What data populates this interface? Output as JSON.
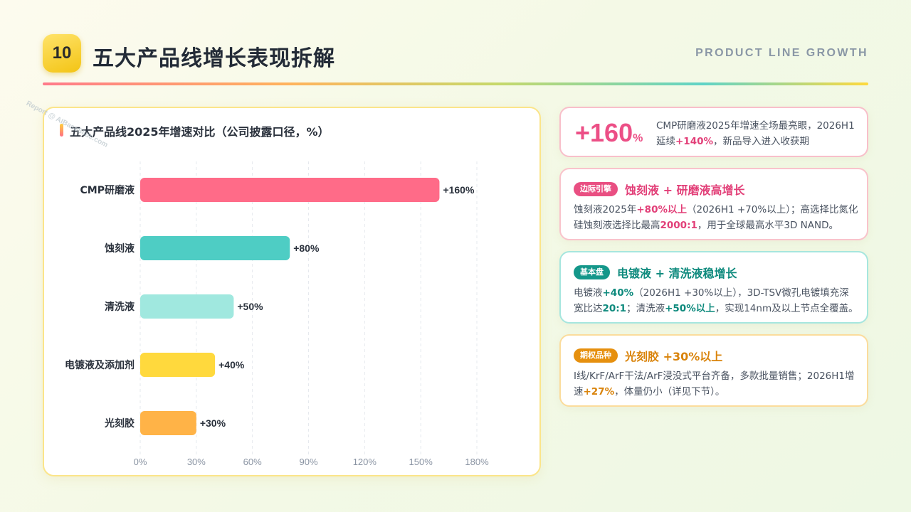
{
  "header": {
    "number": "10",
    "title": "五大产品线增长表现拆解",
    "subtitle_en": "PRODUCT LINE GROWTH"
  },
  "watermark": "Report @ AIBaseSlide.com",
  "chart_data": {
    "type": "bar",
    "orientation": "horizontal",
    "title": "五大产品线2025年增速对比（公司披露口径，%）",
    "categories": [
      "CMP研磨液",
      "蚀刻液",
      "清洗液",
      "电镀液及添加剂",
      "光刻胶"
    ],
    "values": [
      160,
      80,
      50,
      40,
      30
    ],
    "value_labels": [
      "+160%",
      "+80%",
      "+50%",
      "+40%",
      "+30%"
    ],
    "colors": [
      "#ff6b88",
      "#4ecdc4",
      "#a0e8df",
      "#ffd93d",
      "#ffb347"
    ],
    "xlim": [
      0,
      180
    ],
    "xticks": [
      0,
      30,
      60,
      90,
      120,
      150,
      180
    ],
    "xtick_labels": [
      "0%",
      "30%",
      "60%",
      "90%",
      "120%",
      "150%",
      "180%"
    ],
    "grid": "vertical-dashed",
    "xlabel": "",
    "ylabel": ""
  },
  "cards": [
    {
      "stat_value": "+160",
      "stat_unit": "%",
      "text": [
        {
          "t": "CMP研磨液2025年增速全场最亮眼，2026H1延续"
        },
        {
          "t": "+140%",
          "hl": true
        },
        {
          "t": "，新品导入进入收获期"
        }
      ]
    },
    {
      "tag": "边际引擎",
      "title": "蚀刻液 + 研磨液高增长",
      "text": [
        {
          "t": "蚀刻液2025年"
        },
        {
          "t": "+80%以上",
          "hl": true
        },
        {
          "t": "（2026H1 +70%以上）；高选择比氮化硅蚀刻液选择比最高"
        },
        {
          "t": "2000:1",
          "hl": true
        },
        {
          "t": "，用于全球最高水平3D NAND。"
        }
      ]
    },
    {
      "tag": "基本盘",
      "title": "电镀液 + 清洗液稳增长",
      "text": [
        {
          "t": "电镀液"
        },
        {
          "t": "+40%",
          "hl": true
        },
        {
          "t": "（2026H1 +30%以上），3D-TSV微孔电镀填充深宽比达"
        },
        {
          "t": "20:1",
          "hl": true
        },
        {
          "t": "；清洗液"
        },
        {
          "t": "+50%以上",
          "hl": true
        },
        {
          "t": "，实现14nm及以上节点全覆盖。"
        }
      ]
    },
    {
      "tag": "期权品种",
      "title": "光刻胶 +30%以上",
      "text": [
        {
          "t": "I线/KrF/ArF干法/ArF浸没式平台齐备，多款批量销售；2026H1增速"
        },
        {
          "t": "+27%",
          "hl": true
        },
        {
          "t": "，体量仍小（详见下节）。"
        }
      ]
    }
  ]
}
